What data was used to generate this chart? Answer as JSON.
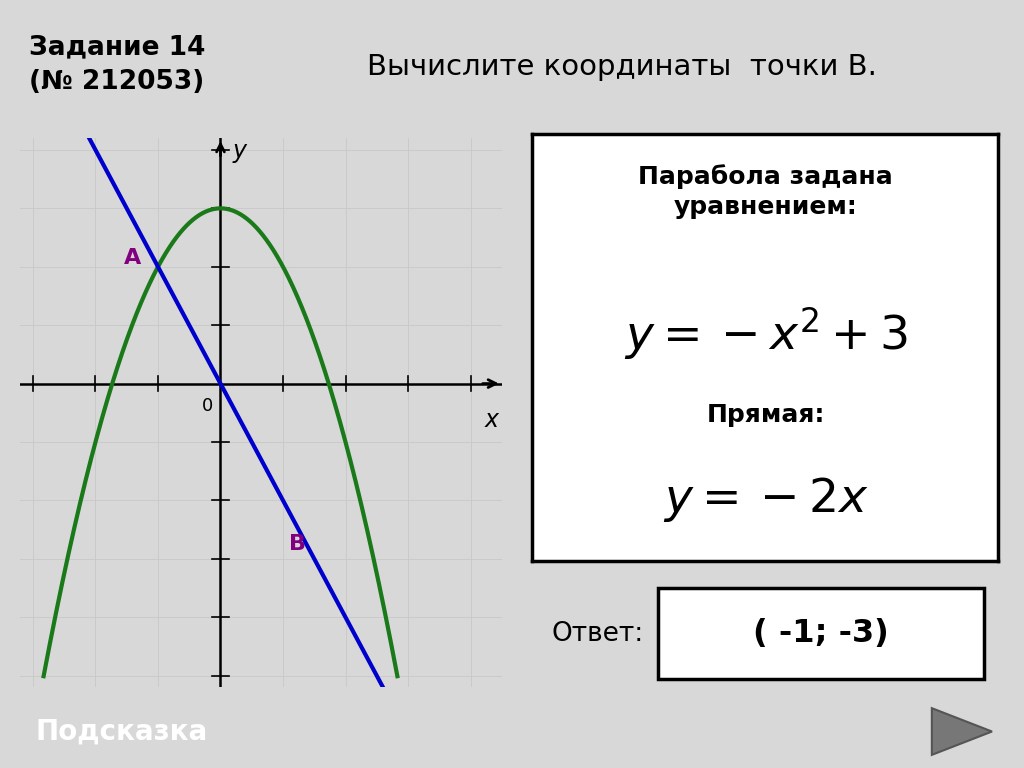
{
  "title_box_text": "Задание 14\n(№ 212053)",
  "title_box_color": "#d9a0e8",
  "header_text": "Вычислите координаты  точки В.",
  "header_bg_top": "#d0d0d0",
  "header_bg_bot": "#b8b8b8",
  "grid_color": "#c8c8c8",
  "bg_color": "#d8d8d8",
  "graph_bg": "#ffffff",
  "parabola_color": "#1a7a1a",
  "line_color": "#0000cc",
  "label_color": "#800080",
  "axis_color": "#000000",
  "xlim": [
    -3.2,
    4.5
  ],
  "ylim": [
    -5.2,
    4.2
  ],
  "formula_box_text1": "Парабола задана\nуравнением:",
  "formula_line_label": "Прямая:",
  "answer_label": "Ответ:",
  "answer_text": "( -1; -3)",
  "hint_text": "Подсказка",
  "hint_bg": "#444444",
  "nav_arrow_color": "#aaaaaa"
}
